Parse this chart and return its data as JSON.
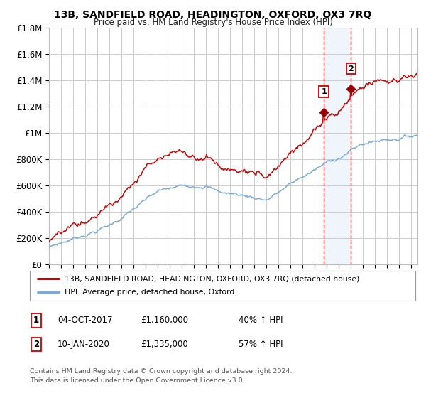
{
  "title": "13B, SANDFIELD ROAD, HEADINGTON, OXFORD, OX3 7RQ",
  "subtitle": "Price paid vs. HM Land Registry's House Price Index (HPI)",
  "ylim": [
    0,
    1800000
  ],
  "yticks": [
    0,
    200000,
    400000,
    600000,
    800000,
    1000000,
    1200000,
    1400000,
    1600000,
    1800000
  ],
  "ytick_labels": [
    "£0",
    "£200K",
    "£400K",
    "£600K",
    "£800K",
    "£1M",
    "£1.2M",
    "£1.4M",
    "£1.6M",
    "£1.8M"
  ],
  "legend_line1": "13B, SANDFIELD ROAD, HEADINGTON, OXFORD, OX3 7RQ (detached house)",
  "legend_line2": "HPI: Average price, detached house, Oxford",
  "annotation1_label": "1",
  "annotation1_date": "04-OCT-2017",
  "annotation1_price": "£1,160,000",
  "annotation1_pct": "40% ↑ HPI",
  "annotation2_label": "2",
  "annotation2_date": "10-JAN-2020",
  "annotation2_price": "£1,335,000",
  "annotation2_pct": "57% ↑ HPI",
  "footnote": "Contains HM Land Registry data © Crown copyright and database right 2024.\nThis data is licensed under the Open Government Licence v3.0.",
  "line1_color": "#cc0000",
  "line2_color": "#7aaadd",
  "vline_color": "#cc0000",
  "highlight_color": "#ddeeff",
  "marker_color": "#990000",
  "background_color": "#ffffff",
  "grid_color": "#cccccc",
  "annotation_box_color": "#cc0000",
  "sale1_x": 2017.75,
  "sale1_y": 1160000,
  "sale2_x": 2020.0,
  "sale2_y": 1335000,
  "xmin": 1995,
  "xmax": 2025.5
}
